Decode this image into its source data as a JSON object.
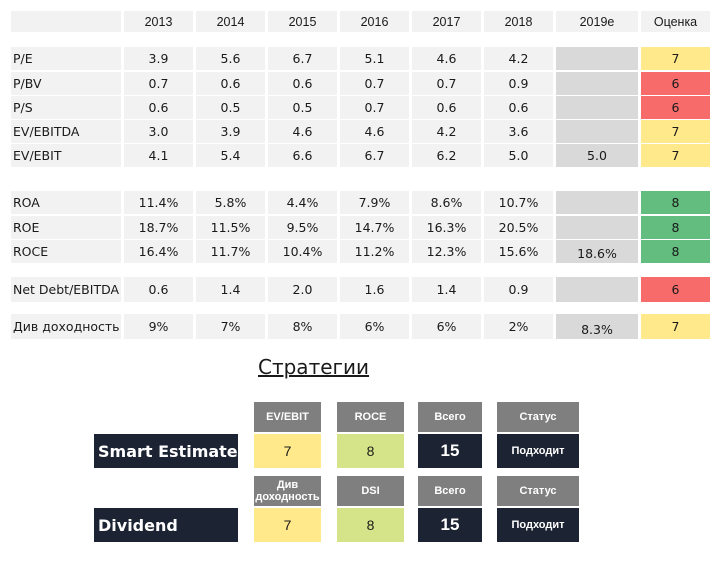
{
  "table": {
    "years": [
      "2013",
      "2014",
      "2015",
      "2016",
      "2017",
      "2018",
      "2019e",
      "Оценка"
    ],
    "rows": [
      {
        "label": "P/E",
        "values": [
          "3.9",
          "5.6",
          "6.7",
          "5.1",
          "4.6",
          "4.2"
        ],
        "est": "",
        "score": "7",
        "score_color": "yellow"
      },
      {
        "label": "P/BV",
        "values": [
          "0.7",
          "0.6",
          "0.6",
          "0.7",
          "0.7",
          "0.9"
        ],
        "est": "",
        "score": "6",
        "score_color": "red"
      },
      {
        "label": "P/S",
        "values": [
          "0.6",
          "0.5",
          "0.5",
          "0.7",
          "0.6",
          "0.6"
        ],
        "est": "",
        "score": "6",
        "score_color": "red"
      },
      {
        "label": "EV/EBITDA",
        "values": [
          "3.0",
          "3.9",
          "4.6",
          "4.6",
          "4.2",
          "3.6"
        ],
        "est": "",
        "score": "7",
        "score_color": "yellow"
      },
      {
        "label": "EV/EBIT",
        "values": [
          "4.1",
          "5.4",
          "6.6",
          "6.7",
          "6.2",
          "5.0"
        ],
        "est": "5.0",
        "score": "7",
        "score_color": "yellow"
      },
      {
        "label": "ROA",
        "values": [
          "11.4%",
          "5.8%",
          "4.4%",
          "7.9%",
          "8.6%",
          "10.7%"
        ],
        "est": "",
        "score": "8",
        "score_color": "green"
      },
      {
        "label": "ROE",
        "values": [
          "18.7%",
          "11.5%",
          "9.5%",
          "14.7%",
          "16.3%",
          "20.5%"
        ],
        "est": "",
        "score": "8",
        "score_color": "green"
      },
      {
        "label": "ROCE",
        "values": [
          "16.4%",
          "11.7%",
          "10.4%",
          "11.2%",
          "12.3%",
          "15.6%"
        ],
        "est": "18.6%",
        "score": "8",
        "score_color": "green"
      },
      {
        "label": "Net Debt/EBITDA",
        "values": [
          "0.6",
          "1.4",
          "2.0",
          "1.6",
          "1.4",
          "0.9"
        ],
        "est": "",
        "score": "6",
        "score_color": "red"
      },
      {
        "label": "Див доходность",
        "values": [
          "9%",
          "7%",
          "8%",
          "6%",
          "6%",
          "2%"
        ],
        "est": "8.3%",
        "score": "7",
        "score_color": "yellow"
      }
    ]
  },
  "strategies": {
    "title": "Стратегии",
    "items": [
      {
        "name": "Smart Estimate",
        "h1": "EV/EBIT",
        "h2": "ROCE",
        "h3": "Всего",
        "h4": "Статус",
        "v1": "7",
        "v2": "8",
        "total": "15",
        "status": "Подходит"
      },
      {
        "name": "Dividend",
        "h1": "Див доходность",
        "h2": "DSI",
        "h3": "Всего",
        "h4": "Статус",
        "v1": "7",
        "v2": "8",
        "total": "15",
        "status": "Подходит"
      }
    ]
  },
  "colors": {
    "yellow": "#ffe98a",
    "red": "#f86b6b",
    "green": "#63bd7e",
    "light_green": "#d6e489",
    "dark": "#1c2333",
    "gray_header": "#7f7f7f"
  }
}
